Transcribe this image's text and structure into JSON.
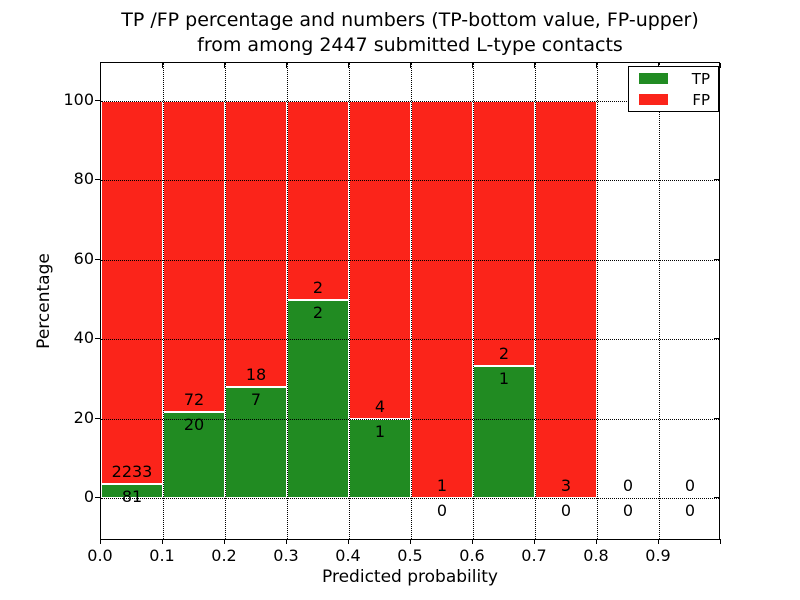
{
  "figure": {
    "title_line1": "TP /FP percentage and numbers (TP-bottom value, FP-upper)",
    "title_line2": "from among 2447 submitted L-type contacts"
  },
  "chart_data": {
    "type": "bar",
    "subtype": "stacked-percentage-histogram",
    "title": "TP /FP percentage and numbers (TP-bottom value, FP-upper) from among 2447 submitted L-type contacts",
    "xlabel": "Predicted probability",
    "ylabel": "Percentage",
    "total_contacts": 2447,
    "xlim": [
      0.0,
      1.0
    ],
    "ylim": [
      -11,
      110
    ],
    "x_ticks": [
      "0.0",
      "0.1",
      "0.2",
      "0.3",
      "0.4",
      "0.5",
      "0.6",
      "0.7",
      "0.8",
      "0.9"
    ],
    "y_ticks": [
      0,
      20,
      40,
      60,
      80,
      100
    ],
    "grid": "dotted",
    "legend": {
      "position": "upper-right",
      "entries": [
        "TP",
        "FP"
      ]
    },
    "colors": {
      "tp": "#218b22",
      "fp": "#fb241a",
      "bar_edge": "#ffffff",
      "grid": "#000000"
    },
    "bins": [
      {
        "range": "0.0-0.1",
        "tp": 81,
        "fp": 2233,
        "tp_percent": 3.5
      },
      {
        "range": "0.1-0.2",
        "tp": 20,
        "fp": 72,
        "tp_percent": 21.7
      },
      {
        "range": "0.2-0.3",
        "tp": 7,
        "fp": 18,
        "tp_percent": 28.0
      },
      {
        "range": "0.3-0.4",
        "tp": 2,
        "fp": 2,
        "tp_percent": 50.0
      },
      {
        "range": "0.4-0.5",
        "tp": 1,
        "fp": 4,
        "tp_percent": 20.0
      },
      {
        "range": "0.5-0.6",
        "tp": 0,
        "fp": 1,
        "tp_percent": 0.0
      },
      {
        "range": "0.6-0.7",
        "tp": 1,
        "fp": 2,
        "tp_percent": 33.3
      },
      {
        "range": "0.7-0.8",
        "tp": 0,
        "fp": 3,
        "tp_percent": 0.0
      },
      {
        "range": "0.8-0.9",
        "tp": 0,
        "fp": 0,
        "tp_percent": null
      },
      {
        "range": "0.9-1.0",
        "tp": 0,
        "fp": 0,
        "tp_percent": null
      }
    ]
  }
}
